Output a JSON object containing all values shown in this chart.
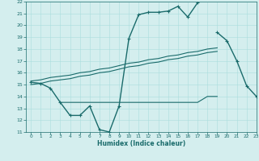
{
  "xlabel": "Humidex (Indice chaleur)",
  "x_values": [
    0,
    1,
    2,
    3,
    4,
    5,
    6,
    7,
    8,
    9,
    10,
    11,
    12,
    13,
    14,
    15,
    16,
    17,
    18,
    19,
    20,
    21,
    22,
    23
  ],
  "line1_y": [
    15.2,
    15.1,
    14.7,
    13.5,
    12.4,
    12.4,
    13.2,
    11.2,
    11.0,
    13.2,
    18.9,
    20.9,
    21.1,
    21.1,
    21.2,
    21.6,
    20.7,
    21.9,
    null,
    19.4,
    18.7,
    17.0,
    14.9,
    14.0
  ],
  "line2_y": [
    15.0,
    15.1,
    15.3,
    15.4,
    15.5,
    15.7,
    15.8,
    16.0,
    16.1,
    16.3,
    16.5,
    16.6,
    16.8,
    16.9,
    17.1,
    17.2,
    17.4,
    17.5,
    17.7,
    17.8,
    null,
    null,
    null,
    null
  ],
  "line3_y": [
    15.3,
    15.4,
    15.6,
    15.7,
    15.8,
    16.0,
    16.1,
    16.3,
    16.4,
    16.6,
    16.8,
    16.9,
    17.1,
    17.2,
    17.4,
    17.5,
    17.7,
    17.8,
    18.0,
    18.1,
    null,
    null,
    null,
    null
  ],
  "line4_y": [
    null,
    null,
    null,
    13.5,
    13.5,
    13.5,
    13.5,
    13.5,
    13.5,
    13.5,
    13.5,
    13.5,
    13.5,
    13.5,
    13.5,
    13.5,
    13.5,
    13.5,
    14.0,
    14.0,
    null,
    null,
    null,
    null
  ],
  "ylim": [
    11,
    22
  ],
  "xlim": [
    -0.5,
    23
  ],
  "yticks": [
    11,
    12,
    13,
    14,
    15,
    16,
    17,
    18,
    19,
    20,
    21,
    22
  ],
  "xticks": [
    0,
    1,
    2,
    3,
    4,
    5,
    6,
    7,
    8,
    9,
    10,
    11,
    12,
    13,
    14,
    15,
    16,
    17,
    18,
    19,
    20,
    21,
    22,
    23
  ],
  "line_color": "#1a6b6b",
  "bg_color": "#d4eeee",
  "grid_color": "#aadddd"
}
